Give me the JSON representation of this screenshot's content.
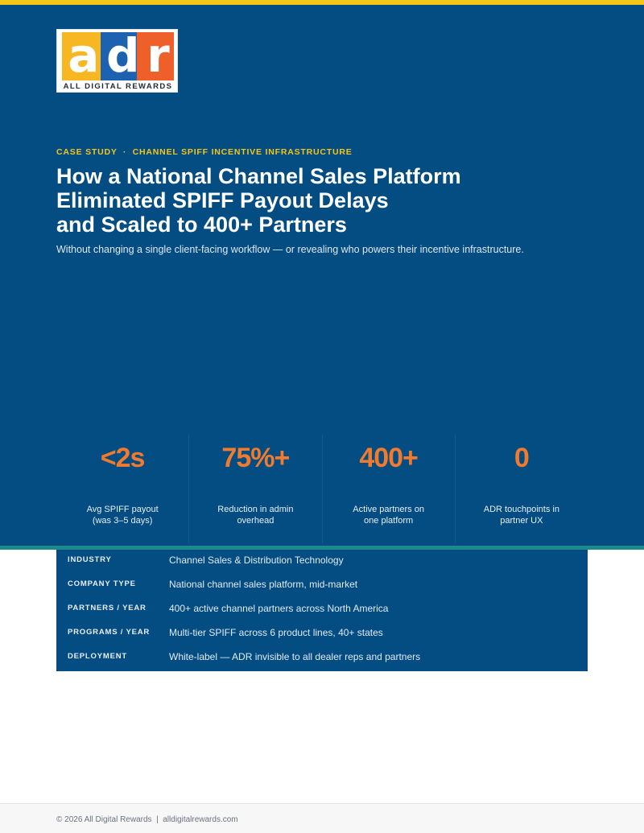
{
  "logo": {
    "letters": [
      "a",
      "d",
      "r"
    ],
    "tagline": "ALL DIGITAL REWARDS",
    "colors": {
      "a": "#f7b722",
      "d": "#1d62b0",
      "r": "#ef5f2a"
    }
  },
  "hero": {
    "eyebrow": "CASE STUDY  ·  CHANNEL SPIFF INCENTIVE INFRASTRUCTURE",
    "title_lines": [
      "How a National Channel Sales Platform",
      "Eliminated SPIFF Payout Delays",
      "and Scaled to 400+ Partners"
    ],
    "subtitle": "Without changing a single client-facing workflow — or revealing who powers their incentive infrastructure.",
    "background_color": "#034d83",
    "accent_color": "#f5c518"
  },
  "stats": [
    {
      "value": "<2s",
      "label": "Avg SPIFF payout\n(was 3–5 days)"
    },
    {
      "value": "75%+",
      "label": "Reduction in admin\noverhead"
    },
    {
      "value": "400+",
      "label": "Active partners on\none platform"
    },
    {
      "value": "0",
      "label": "ADR touchpoints in\npartner UX"
    }
  ],
  "stat_value_color": "#f07a2d",
  "info_rows": [
    {
      "key": "INDUSTRY",
      "value": "Channel Sales & Distribution Technology"
    },
    {
      "key": "COMPANY TYPE",
      "value": "National channel sales platform, mid-market"
    },
    {
      "key": "PARTNERS / YEAR",
      "value": "400+ active channel partners across North America"
    },
    {
      "key": "PROGRAMS / YEAR",
      "value": "Multi-tier SPIFF across 6 product lines, 40+ states"
    },
    {
      "key": "DEPLOYMENT",
      "value": "White-label — ADR invisible to all dealer reps and partners"
    }
  ],
  "footer": {
    "text": "© 2026 All Digital Rewards  |  alldigitalrewards.com"
  }
}
